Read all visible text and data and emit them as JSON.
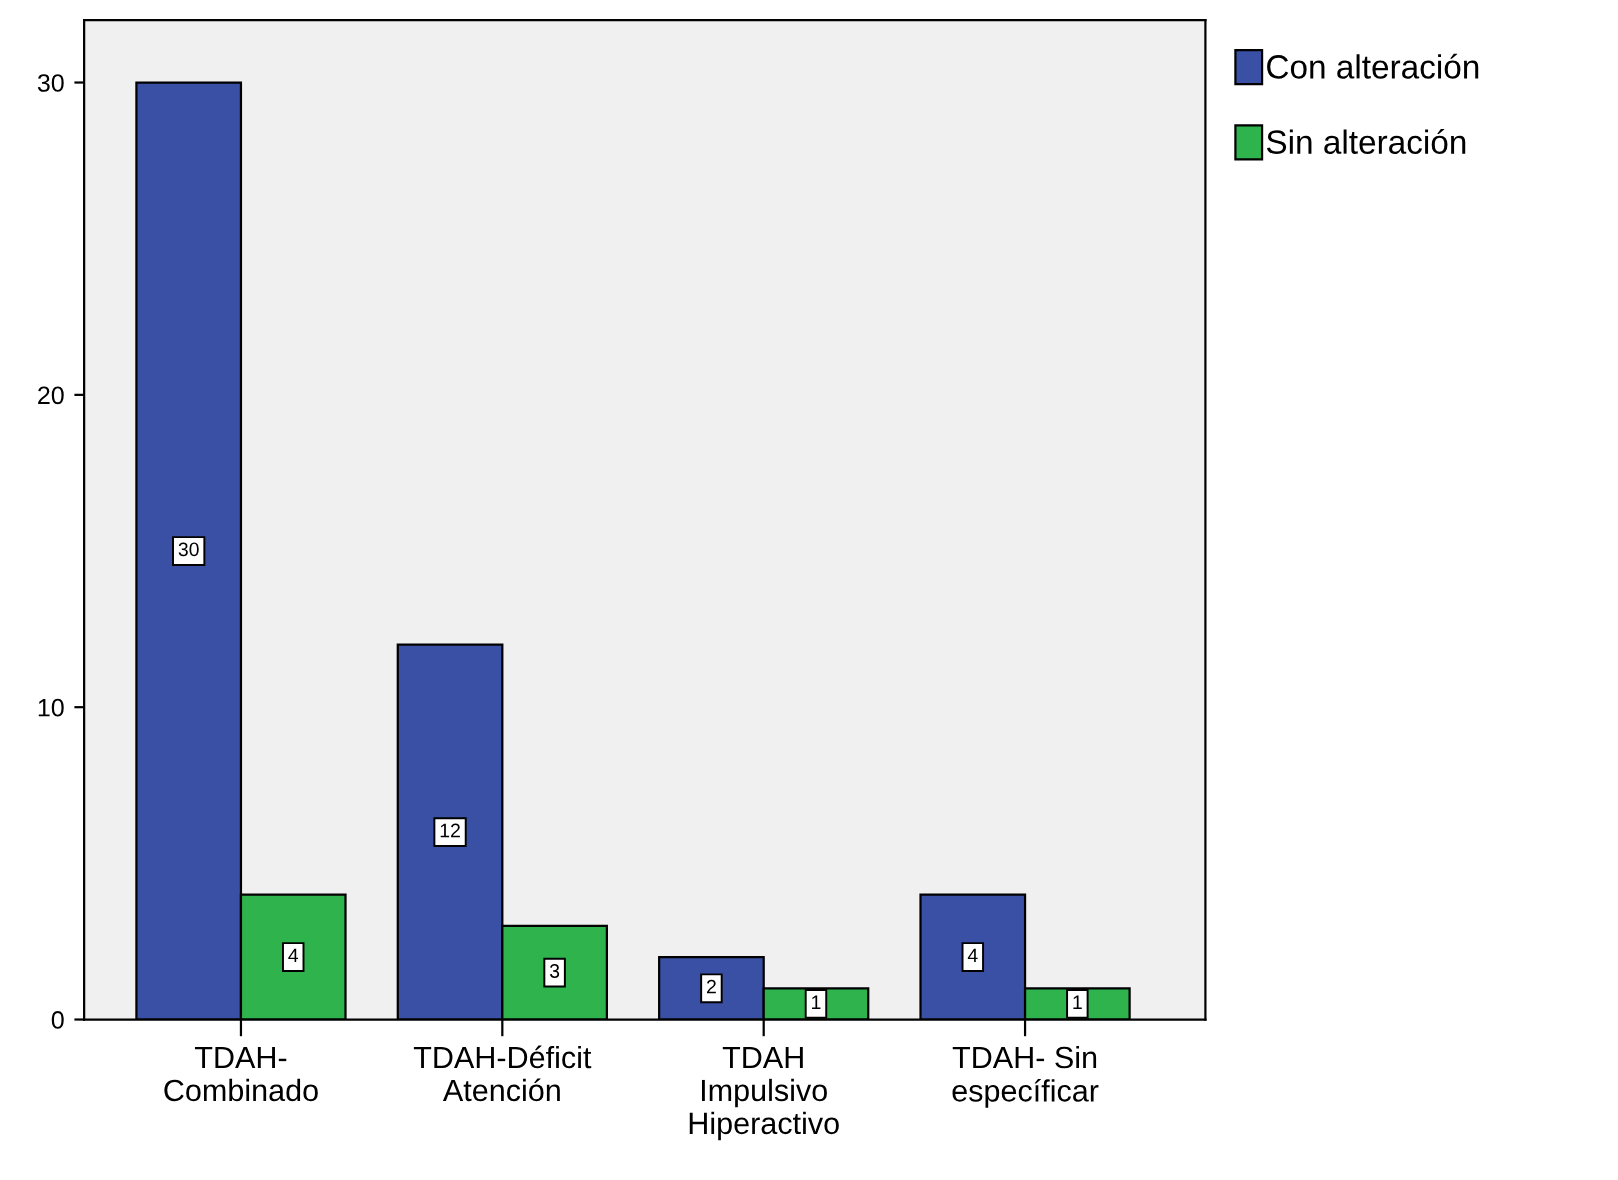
{
  "chart_data": {
    "type": "bar",
    "categories": [
      "TDAH-\nCombinado",
      "TDAH-Déficit\nAtención",
      "TDAH\nImpulsivo\nHiperactivo",
      "TDAH- Sin\nespecíficar"
    ],
    "series": [
      {
        "name": "Con alteración",
        "color": "#3a50a4",
        "values": [
          30,
          12,
          2,
          4
        ]
      },
      {
        "name": "Sin alteración",
        "color": "#2fb34c",
        "values": [
          4,
          3,
          1,
          1
        ]
      }
    ],
    "ylim": [
      0,
      32
    ],
    "yticks": [
      0,
      10,
      20,
      30
    ],
    "grid": false,
    "legend": "top right",
    "data_labels": true
  }
}
